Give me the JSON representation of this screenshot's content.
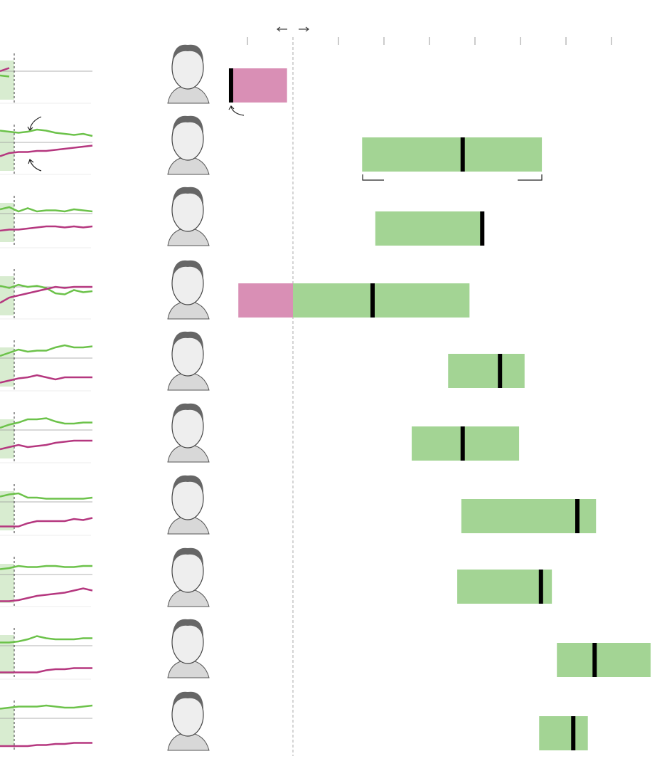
{
  "chart_data": {
    "type": "range",
    "xlim": [
      -20,
      80
    ],
    "xticks": [
      -10,
      0,
      10,
      20,
      30,
      40,
      50,
      60,
      70
    ],
    "positive_color": "#a3d494",
    "negative_color": "#d98fb5",
    "marker_color": "#000000",
    "approve_color": "#6cc24a",
    "disapprove_color": "#b5377f",
    "spark_ylim": [
      20,
      80
    ],
    "spark_ref": 50,
    "presidents": [
      {
        "low": -13.9,
        "high": -1.3,
        "marker": -13.6,
        "approve": [
          46,
          45
        ],
        "disapprove": [
          50,
          53
        ]
      },
      {
        "low": 15.2,
        "high": 54.7,
        "marker": 37.3,
        "approve": [
          61,
          60,
          59,
          60,
          62,
          61,
          59,
          58,
          57,
          58,
          56
        ],
        "disapprove": [
          37,
          40,
          41,
          41,
          42,
          42,
          43,
          44,
          45,
          46,
          47
        ]
      },
      {
        "low": 18.1,
        "high": 41.9,
        "marker": 41.6,
        "approve": [
          54,
          56,
          52,
          55,
          52,
          53,
          53,
          52,
          54,
          53,
          52
        ],
        "disapprove": [
          34,
          35,
          35,
          36,
          37,
          38,
          38,
          37,
          38,
          37,
          38
        ]
      },
      {
        "low": -12.0,
        "high": 38.8,
        "marker": 17.5,
        "approve": [
          51,
          49,
          52,
          50,
          51,
          49,
          44,
          43,
          47,
          45,
          46
        ],
        "disapprove": [
          35,
          40,
          42,
          44,
          46,
          48,
          50,
          49,
          50,
          50,
          50
        ]
      },
      {
        "low": 34.1,
        "high": 50.9,
        "marker": 45.5,
        "approve": [
          52,
          55,
          58,
          56,
          57,
          57,
          60,
          62,
          60,
          60,
          61
        ],
        "disapprove": [
          27,
          29,
          31,
          32,
          34,
          32,
          30,
          32,
          32,
          32,
          32
        ]
      },
      {
        "low": 26.1,
        "high": 49.7,
        "marker": 37.3,
        "approve": [
          52,
          55,
          57,
          60,
          60,
          61,
          58,
          56,
          56,
          57,
          57
        ],
        "disapprove": [
          32,
          34,
          36,
          34,
          35,
          36,
          38,
          39,
          40,
          40,
          40
        ]
      },
      {
        "low": 37.0,
        "high": 66.6,
        "marker": 62.5,
        "approve": [
          55,
          57,
          58,
          54,
          54,
          53,
          53,
          53,
          53,
          53,
          54
        ],
        "disapprove": [
          27,
          27,
          27,
          30,
          32,
          32,
          32,
          32,
          34,
          33,
          35
        ]
      },
      {
        "low": 36.1,
        "high": 56.9,
        "marker": 54.5,
        "approve": [
          55,
          56,
          58,
          57,
          57,
          58,
          58,
          57,
          57,
          58,
          58
        ],
        "disapprove": [
          25,
          25,
          26,
          28,
          30,
          31,
          32,
          33,
          35,
          37,
          35
        ]
      },
      {
        "low": 58.0,
        "high": 78.6,
        "marker": 66.3,
        "approve": [
          53,
          53,
          54,
          56,
          59,
          57,
          56,
          56,
          56,
          57,
          57
        ],
        "disapprove": [
          25,
          25,
          25,
          25,
          25,
          27,
          28,
          28,
          29,
          29,
          29
        ]
      },
      {
        "low": 54.1,
        "high": 64.8,
        "marker": 61.6,
        "approve": [
          59,
          60,
          61,
          61,
          61,
          62,
          61,
          60,
          60,
          61,
          62
        ],
        "disapprove": [
          24,
          24,
          24,
          24,
          25,
          25,
          26,
          26,
          27,
          27,
          27
        ]
      }
    ]
  }
}
